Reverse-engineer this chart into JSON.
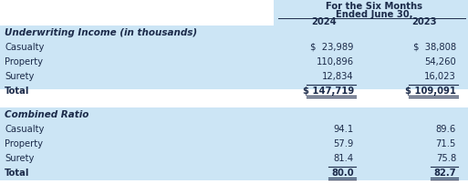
{
  "header_line1": "For the Six Months",
  "header_line2": "Ended June 30,",
  "col2024": "2024",
  "col2023": "2023",
  "section1_title": "Underwriting Income (in thousands)",
  "section1_rows": [
    {
      "label": "Casualty",
      "v2024": "$  23,989",
      "v2023": "$  38,808",
      "is_total": false
    },
    {
      "label": "Property",
      "v2024": "110,896",
      "v2023": "54,260",
      "is_total": false
    },
    {
      "label": "Surety",
      "v2024": "12,834",
      "v2023": "16,023",
      "is_total": false
    },
    {
      "label": "Total",
      "v2024": "$ 147,719",
      "v2023": "$ 109,091",
      "is_total": true
    }
  ],
  "section2_title": "Combined Ratio",
  "section2_rows": [
    {
      "label": "Casualty",
      "v2024": "94.1",
      "v2023": "89.6",
      "is_total": false
    },
    {
      "label": "Property",
      "v2024": "57.9",
      "v2023": "71.5",
      "is_total": false
    },
    {
      "label": "Surety",
      "v2024": "81.4",
      "v2023": "75.8",
      "is_total": false
    },
    {
      "label": "Total",
      "v2024": "80.0",
      "v2023": "82.7",
      "is_total": true
    }
  ],
  "bg_blue": "#cce5f5",
  "bg_white": "#ffffff",
  "text_dark": "#1c2b4a",
  "line_color": "#1c2b4a",
  "font_size": 7.2,
  "title_font_size": 7.5,
  "header_font_size": 7.2
}
